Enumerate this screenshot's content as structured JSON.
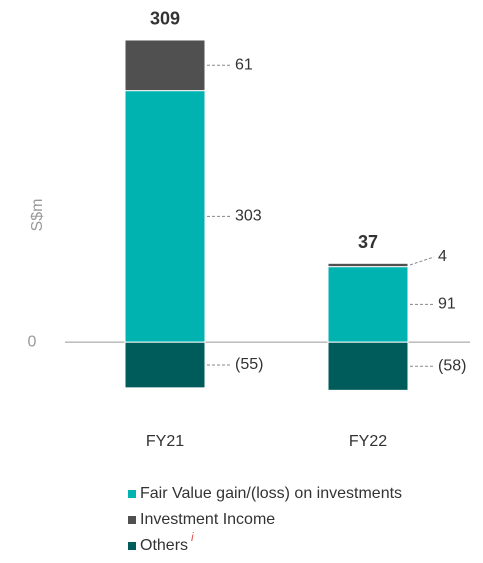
{
  "chart_data": {
    "type": "stacked_bar",
    "y_label": "S$m",
    "categories": [
      "FY21",
      "FY22"
    ],
    "totals": [
      309,
      37
    ],
    "series": [
      {
        "name": "Fair Value gain/(loss) on investments",
        "color": "#00b2b0",
        "values": [
          303,
          91
        ]
      },
      {
        "name": "Investment Income",
        "color": "#505050",
        "values": [
          61,
          4
        ]
      },
      {
        "name": "Others",
        "color": "#005b5b",
        "values": [
          -55,
          -58
        ],
        "value_labels": [
          "(55)",
          "(58)"
        ],
        "note": "i"
      }
    ],
    "ylim": [
      -60,
      370
    ],
    "yticks": [
      0
    ]
  }
}
